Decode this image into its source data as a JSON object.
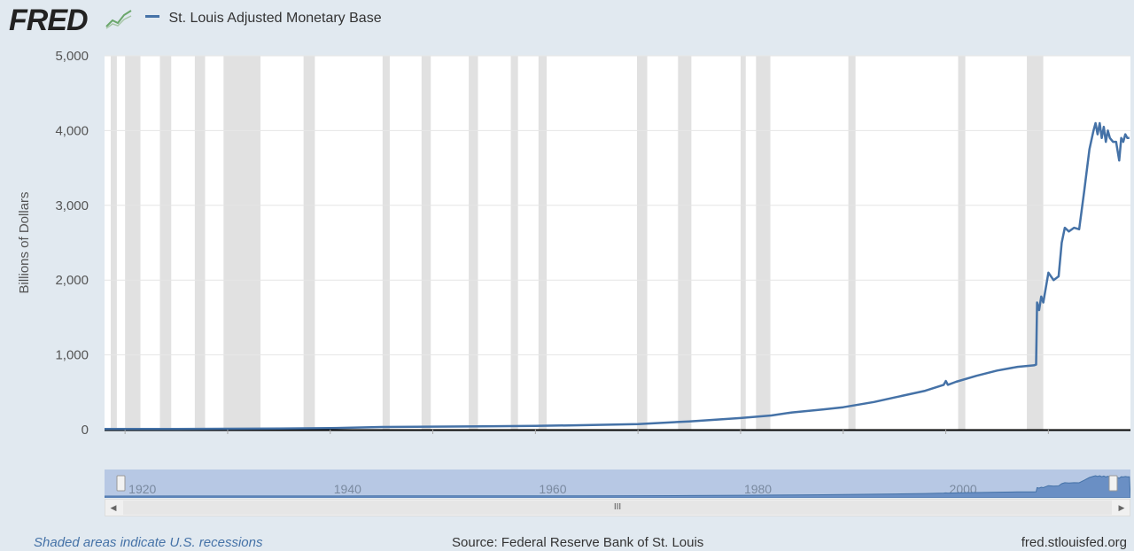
{
  "header": {
    "logo_text": "FRED",
    "legend_label": "St. Louis Adjusted Monetary Base"
  },
  "footer": {
    "left": "Shaded areas indicate U.S. recessions",
    "center": "Source: Federal Reserve Bank of St. Louis",
    "right": "fred.stlouisfed.org"
  },
  "colors": {
    "series": "#4572a7",
    "background": "#e1e9f0",
    "plot_bg": "#ffffff",
    "recession": "#e1e1e1",
    "navigator_fill": "#b7c8e4"
  },
  "navigator": {
    "tick_labels": [
      "1920",
      "1940",
      "1960",
      "1980",
      "2000"
    ],
    "thumb_glyph": "III"
  },
  "chart_data": {
    "type": "line",
    "ylabel": "Billions of Dollars",
    "xlabel": "",
    "title": "",
    "xlim": [
      1918,
      2018
    ],
    "ylim": [
      0,
      5000
    ],
    "x_ticks": [
      1920,
      1930,
      1940,
      1950,
      1960,
      1970,
      1980,
      1990,
      2000,
      2010
    ],
    "y_ticks": [
      0,
      1000,
      2000,
      3000,
      4000,
      5000
    ],
    "y_tick_labels": [
      "0",
      "1,000",
      "2,000",
      "3,000",
      "4,000",
      "5,000"
    ],
    "recessions": [
      [
        1918.6,
        1919.2
      ],
      [
        1920.0,
        1921.5
      ],
      [
        1923.4,
        1924.5
      ],
      [
        1926.8,
        1927.8
      ],
      [
        1929.6,
        1933.2
      ],
      [
        1937.4,
        1938.5
      ],
      [
        1945.1,
        1945.8
      ],
      [
        1948.9,
        1949.8
      ],
      [
        1953.5,
        1954.4
      ],
      [
        1957.6,
        1958.3
      ],
      [
        1960.3,
        1961.1
      ],
      [
        1969.9,
        1970.9
      ],
      [
        1973.9,
        1975.2
      ],
      [
        1980.0,
        1980.5
      ],
      [
        1981.5,
        1982.9
      ],
      [
        1990.5,
        1991.2
      ],
      [
        2001.2,
        2001.9
      ],
      [
        2007.9,
        2009.5
      ]
    ],
    "series": [
      {
        "name": "St. Louis Adjusted Monetary Base",
        "x": [
          1918,
          1925,
          1930,
          1935,
          1940,
          1945,
          1950,
          1955,
          1960,
          1965,
          1970,
          1975,
          1980,
          1983,
          1985,
          1988,
          1990,
          1993,
          1995,
          1998,
          1999.8,
          2000.0,
          2000.2,
          2001,
          2003,
          2005,
          2007,
          2008.6,
          2008.8,
          2008.9,
          2009.1,
          2009.3,
          2009.5,
          2010.0,
          2010.5,
          2011.0,
          2011.3,
          2011.6,
          2012.0,
          2012.5,
          2013.0,
          2013.5,
          2014.0,
          2014.4,
          2014.6,
          2014.8,
          2015.0,
          2015.2,
          2015.4,
          2015.6,
          2015.8,
          2016.0,
          2016.3,
          2016.6,
          2016.9,
          2017.1,
          2017.3,
          2017.5,
          2017.7,
          2017.9
        ],
        "values": [
          8,
          10,
          12,
          15,
          20,
          35,
          40,
          45,
          50,
          60,
          75,
          110,
          155,
          190,
          230,
          270,
          300,
          370,
          430,
          520,
          600,
          650,
          600,
          640,
          720,
          790,
          840,
          860,
          870,
          1700,
          1600,
          1780,
          1700,
          2100,
          2000,
          2050,
          2500,
          2700,
          2650,
          2700,
          2680,
          3200,
          3750,
          4000,
          4100,
          3950,
          4100,
          3900,
          4050,
          3850,
          4000,
          3900,
          3850,
          3850,
          3600,
          3900,
          3850,
          3950,
          3900,
          3900
        ]
      }
    ]
  }
}
